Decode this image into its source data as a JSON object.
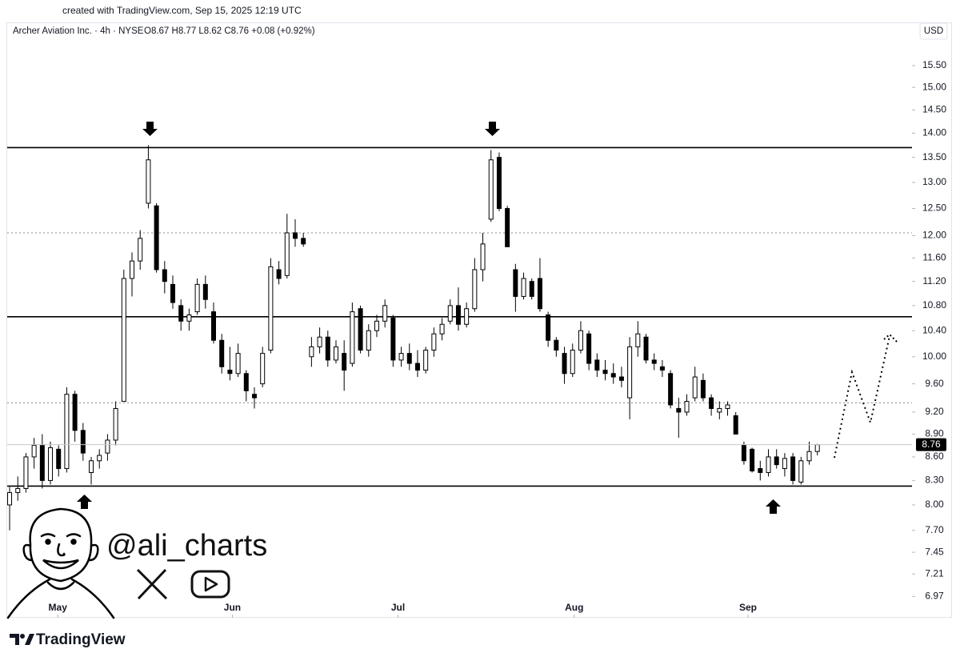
{
  "credit": "created with TradingView.com, Sep 15, 2025 12:19 UTC",
  "watermark": "@ali_charts",
  "brand": "TradingView",
  "chart_data": {
    "type": "candlestick",
    "title": "Archer Aviation Inc. · 4h · NYSE",
    "quote": "O8.67 H8.77 L8.62 C8.76 +0.08 (+0.92%)",
    "currency": "USD",
    "log_scale": true,
    "up_color": "#ffffff",
    "down_color": "#000000",
    "open": [
      8.0,
      8.15,
      8.2,
      8.6,
      8.75,
      8.3,
      8.7,
      8.45,
      9.45,
      8.95,
      8.4,
      8.55,
      8.65,
      8.82,
      9.35,
      11.25,
      11.55,
      12.6,
      12.55,
      11.4,
      11.15,
      10.8,
      10.55,
      10.7,
      11.15,
      10.7,
      10.25,
      9.8,
      9.75,
      9.75,
      9.45,
      9.6,
      10.1,
      11.4,
      11.3,
      12.05,
      11.95,
      10.0,
      10.15,
      10.3,
      9.95,
      10.05,
      9.9,
      10.75,
      10.1,
      10.4,
      10.55,
      10.6,
      9.95,
      10.05,
      9.9,
      9.8,
      10.1,
      10.35,
      10.55,
      10.8,
      10.5,
      10.75,
      11.4,
      12.3,
      13.5,
      12.5,
      11.4,
      10.95,
      11.2,
      11.25,
      10.65,
      10.25,
      10.05,
      9.75,
      10.1,
      10.35,
      9.95,
      9.8,
      9.75,
      9.7,
      9.4,
      10.15,
      10.3,
      9.95,
      9.85,
      9.75,
      9.25,
      9.2,
      9.4,
      9.65,
      9.4,
      9.2,
      9.25,
      9.15,
      8.75,
      8.7,
      8.45,
      8.4,
      8.6,
      8.45,
      8.6,
      8.28,
      8.55,
      8.67
    ],
    "high": [
      8.22,
      8.35,
      8.65,
      8.85,
      8.9,
      8.8,
      8.75,
      9.55,
      9.5,
      9.05,
      8.6,
      8.7,
      8.9,
      9.35,
      11.4,
      11.7,
      12.1,
      13.75,
      12.6,
      11.55,
      11.3,
      10.9,
      10.75,
      11.25,
      11.3,
      10.85,
      10.35,
      10.15,
      10.2,
      9.8,
      9.55,
      10.15,
      11.6,
      11.55,
      12.4,
      12.3,
      12.05,
      10.3,
      10.45,
      10.4,
      10.25,
      10.25,
      10.85,
      10.8,
      10.5,
      10.65,
      10.9,
      10.65,
      10.15,
      10.2,
      10.1,
      10.15,
      10.45,
      10.6,
      10.9,
      11.1,
      10.85,
      11.6,
      12.05,
      13.65,
      13.6,
      12.55,
      11.5,
      11.35,
      11.25,
      11.6,
      10.7,
      10.3,
      10.15,
      10.2,
      10.55,
      10.4,
      10.05,
      9.95,
      9.9,
      9.85,
      10.3,
      10.55,
      10.35,
      10.05,
      9.95,
      9.8,
      9.4,
      9.45,
      9.85,
      9.75,
      9.45,
      9.35,
      9.35,
      9.2,
      8.8,
      8.72,
      8.55,
      8.7,
      8.7,
      8.65,
      8.65,
      8.6,
      8.8,
      8.77
    ],
    "low": [
      7.7,
      8.05,
      8.15,
      8.45,
      8.2,
      8.25,
      8.35,
      8.4,
      8.8,
      8.55,
      8.25,
      8.45,
      8.55,
      8.75,
      9.35,
      10.95,
      11.4,
      12.5,
      11.35,
      11.0,
      10.75,
      10.4,
      10.4,
      10.65,
      10.75,
      10.2,
      9.75,
      9.65,
      9.7,
      9.35,
      9.25,
      9.55,
      10.05,
      11.15,
      11.25,
      11.8,
      11.8,
      9.85,
      10.05,
      9.85,
      9.9,
      9.5,
      9.85,
      10.05,
      10.0,
      10.3,
      10.45,
      9.85,
      9.85,
      9.8,
      9.7,
      9.75,
      10.0,
      10.25,
      10.5,
      10.4,
      10.45,
      10.7,
      11.2,
      12.25,
      12.45,
      11.8,
      10.7,
      10.9,
      10.9,
      10.7,
      10.15,
      10.0,
      9.6,
      9.7,
      10.05,
      9.8,
      9.7,
      9.65,
      9.6,
      9.55,
      9.1,
      10.0,
      9.9,
      9.8,
      9.7,
      9.25,
      8.85,
      9.15,
      9.35,
      9.35,
      9.15,
      9.1,
      9.15,
      8.9,
      8.5,
      8.4,
      8.3,
      8.35,
      8.45,
      8.35,
      8.25,
      8.25,
      8.5,
      8.62
    ],
    "close": [
      8.15,
      8.2,
      8.6,
      8.75,
      8.3,
      8.72,
      8.45,
      9.45,
      8.95,
      8.65,
      8.55,
      8.62,
      8.82,
      9.25,
      11.25,
      11.55,
      11.95,
      13.45,
      11.4,
      11.2,
      10.85,
      10.55,
      10.65,
      11.15,
      10.9,
      10.25,
      9.85,
      9.75,
      10.05,
      9.5,
      9.4,
      10.05,
      11.45,
      11.25,
      12.05,
      11.95,
      11.85,
      10.15,
      10.3,
      9.95,
      10.15,
      9.8,
      10.7,
      10.1,
      10.4,
      10.55,
      10.8,
      9.95,
      10.05,
      9.9,
      9.8,
      10.1,
      10.35,
      10.5,
      10.8,
      10.5,
      10.75,
      11.4,
      11.85,
      13.45,
      12.5,
      11.8,
      10.95,
      11.25,
      10.95,
      10.75,
      10.25,
      10.1,
      9.75,
      10.1,
      10.4,
      9.9,
      9.8,
      9.75,
      9.7,
      9.65,
      10.15,
      10.35,
      9.95,
      9.9,
      9.8,
      9.3,
      9.2,
      9.35,
      9.7,
      9.4,
      9.25,
      9.25,
      9.3,
      8.9,
      8.55,
      8.42,
      8.4,
      8.6,
      8.5,
      8.58,
      8.3,
      8.55,
      8.67,
      8.76
    ],
    "levels": [
      {
        "value": 13.7,
        "style": "solid"
      },
      {
        "value": 12.05,
        "style": "dotted"
      },
      {
        "value": 10.62,
        "style": "solid"
      },
      {
        "value": 9.33,
        "style": "dotted"
      },
      {
        "value": 8.23,
        "style": "solid"
      }
    ],
    "xlim": [
      -1.18,
      110.6
    ],
    "xticks": [
      {
        "value": 5.9,
        "label": "May"
      },
      {
        "value": 27.3,
        "label": "Jun"
      },
      {
        "value": 47.6,
        "label": "Jul"
      },
      {
        "value": 69.2,
        "label": "Aug"
      },
      {
        "value": 90.5,
        "label": "Sep"
      }
    ],
    "ylim": [
      6.75,
      16.07
    ],
    "yticks": [
      {
        "value": 15.5,
        "label": "15.50"
      },
      {
        "value": 15,
        "label": "15.00"
      },
      {
        "value": 14.5,
        "label": "14.50"
      },
      {
        "value": 14,
        "label": "14.00"
      },
      {
        "value": 13.5,
        "label": "13.50"
      },
      {
        "value": 13,
        "label": "13.00"
      },
      {
        "value": 12.5,
        "label": "12.50"
      },
      {
        "value": 12,
        "label": "12.00"
      },
      {
        "value": 11.6,
        "label": "11.60"
      },
      {
        "value": 11.2,
        "label": "11.20"
      },
      {
        "value": 10.8,
        "label": "10.80"
      },
      {
        "value": 10.4,
        "label": "10.40"
      },
      {
        "value": 10,
        "label": "10.00"
      },
      {
        "value": 9.6,
        "label": "9.60"
      },
      {
        "value": 9.2,
        "label": "9.20"
      },
      {
        "value": 8.9,
        "label": "8.90"
      },
      {
        "value": 8.6,
        "label": "8.60"
      },
      {
        "value": 8.3,
        "label": "8.30"
      },
      {
        "value": 8,
        "label": "8.00"
      },
      {
        "value": 7.7,
        "label": "7.70"
      },
      7.45,
      7.21,
      6.97
    ]
  }
}
